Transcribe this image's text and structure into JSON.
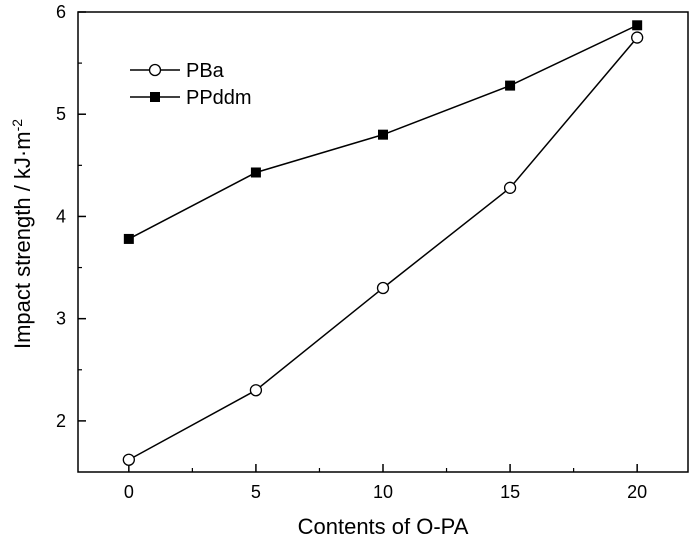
{
  "chart_data": {
    "type": "line",
    "x": [
      0,
      5,
      10,
      15,
      20
    ],
    "series": [
      {
        "name": "PBa",
        "values": [
          1.62,
          2.3,
          3.3,
          4.28,
          5.75
        ],
        "marker": "open-circle",
        "color": "#000000"
      },
      {
        "name": "PPddm",
        "values": [
          3.78,
          4.43,
          4.8,
          5.28,
          5.87
        ],
        "marker": "filled-square",
        "color": "#000000"
      }
    ],
    "xlabel": "Contents of O-PA",
    "ylabel_main": "Impact strength / kJ",
    "ylabel_sep": "·",
    "ylabel_unit": "m",
    "ylabel_exp": "-2",
    "xlim": [
      -2,
      22
    ],
    "ylim": [
      1.5,
      6
    ],
    "xticks": [
      0,
      5,
      10,
      15,
      20
    ],
    "yticks": [
      2,
      3,
      4,
      5,
      6
    ],
    "legend_position": "top-left",
    "grid": false
  }
}
